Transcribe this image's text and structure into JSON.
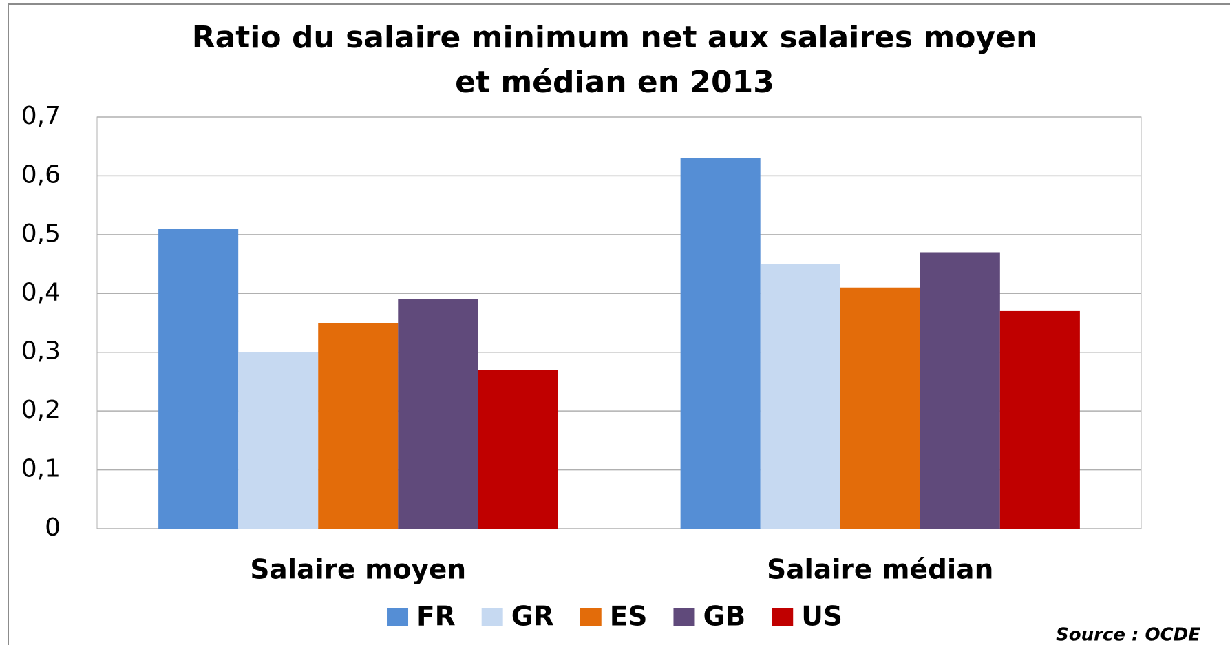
{
  "chart_data": {
    "type": "bar",
    "title": [
      "Ratio du salaire minimum net aux salaires moyen",
      "et médian en 2013"
    ],
    "categories": [
      "Salaire moyen",
      "Salaire médian"
    ],
    "series": [
      {
        "name": "FR",
        "color": "#558ed5",
        "values": [
          0.51,
          0.63
        ]
      },
      {
        "name": "GR",
        "color": "#c6d9f1",
        "values": [
          0.3,
          0.45
        ]
      },
      {
        "name": "ES",
        "color": "#e36c0a",
        "values": [
          0.35,
          0.41
        ]
      },
      {
        "name": "GB",
        "color": "#604a7b",
        "values": [
          0.39,
          0.47
        ]
      },
      {
        "name": "US",
        "color": "#c00000",
        "values": [
          0.27,
          0.37
        ]
      }
    ],
    "ylim": [
      0,
      0.7
    ],
    "yticks": [
      0,
      {
        "value": 0.1,
        "label": "0,1"
      },
      {
        "value": 0.2,
        "label": "0,2"
      },
      {
        "value": 0.3,
        "label": "0,3"
      },
      {
        "value": 0.4,
        "label": "0,4"
      },
      {
        "value": 0.5,
        "label": "0,5"
      },
      {
        "value": 0.6,
        "label": "0,6"
      },
      {
        "value": 0.7,
        "label": "0,7"
      }
    ],
    "grid": true,
    "legend": "bottom",
    "source": "Source : OCDE"
  }
}
